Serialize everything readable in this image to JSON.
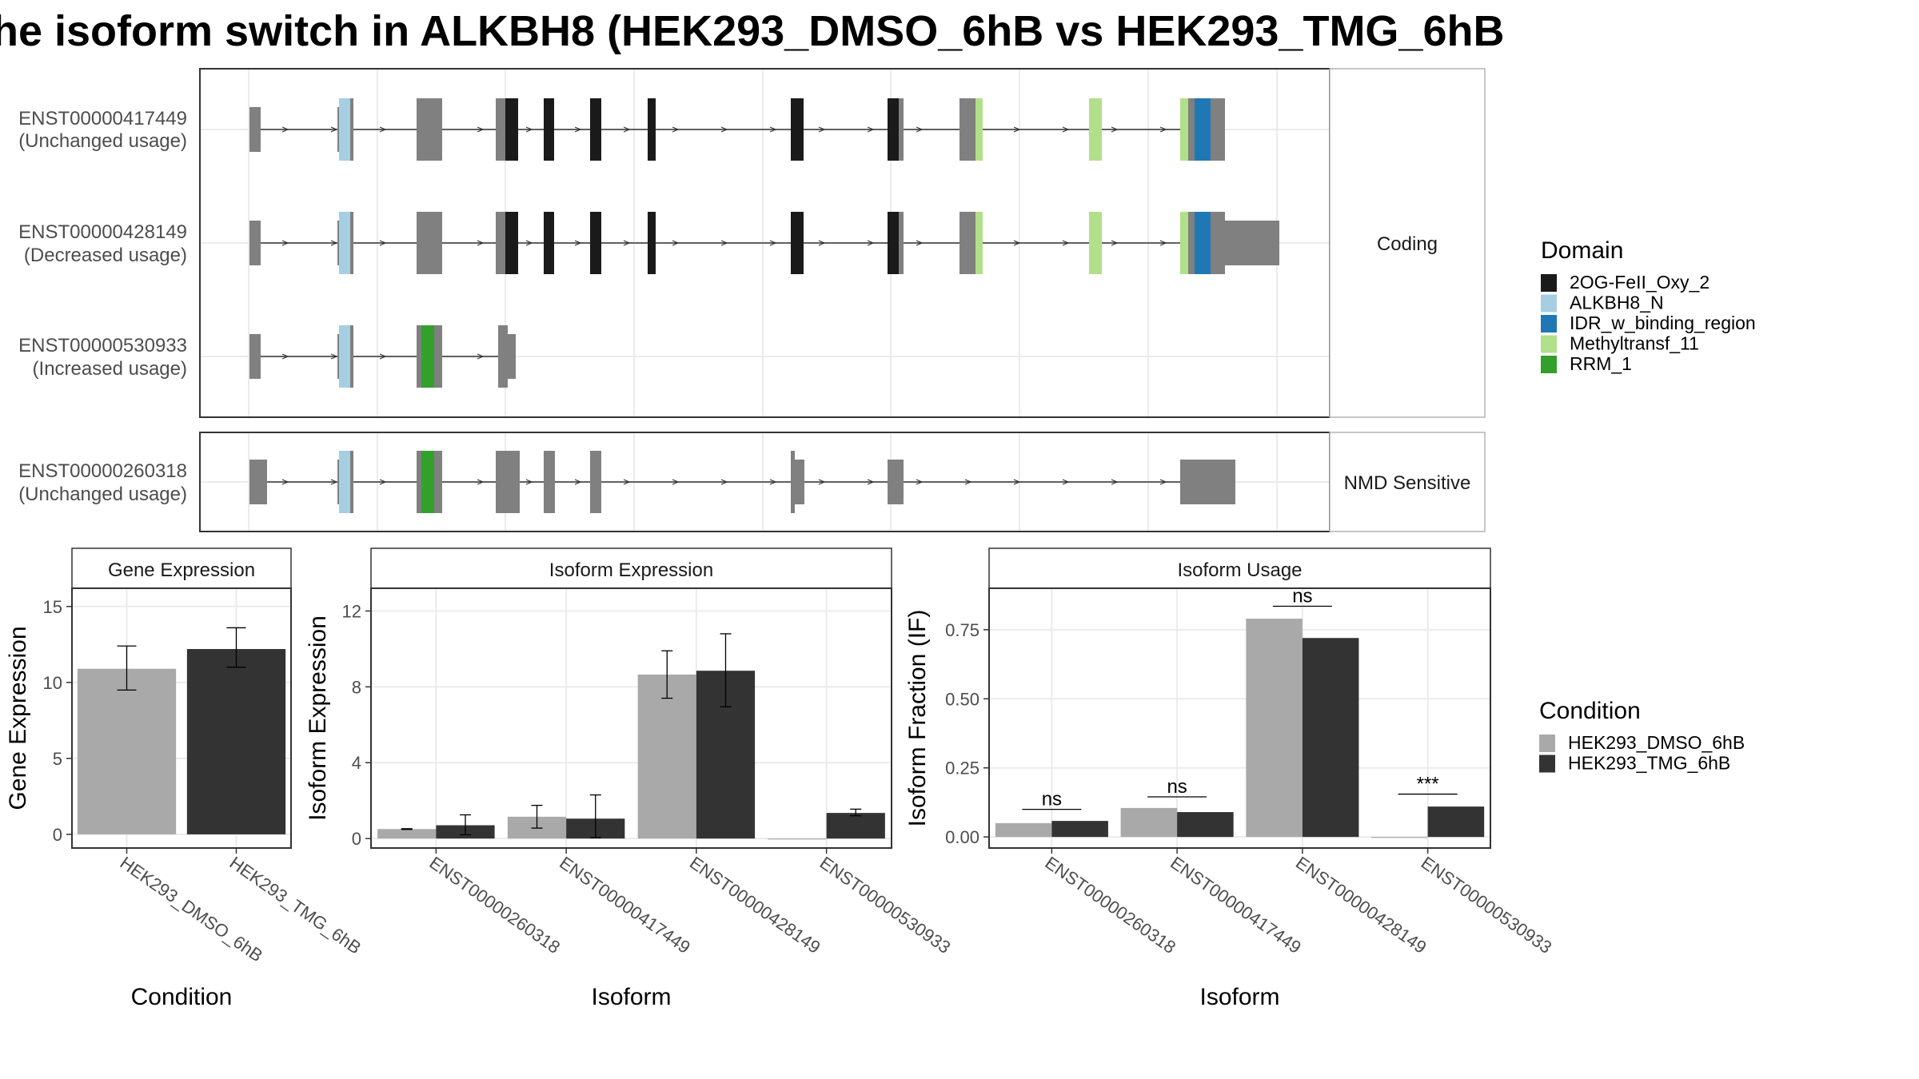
{
  "title": "he isoform switch in ALKBH8 (HEK293_DMSO_6hB vs HEK293_TMG_6hB",
  "colors": {
    "exon": "#808080",
    "dmso": "#a9a9a9",
    "tmg": "#333333",
    "panel_border": "#333333",
    "grid": "#ebebeb",
    "strip_bg": "#ffffff"
  },
  "structure": {
    "facets": [
      "Coding",
      "NMD Sensitive"
    ],
    "transcripts": [
      {
        "id": "ENST00000417449",
        "usage": "(Unchanged usage)",
        "facet": "Coding"
      },
      {
        "id": "ENST00000428149",
        "usage": "(Decreased usage)",
        "facet": "Coding"
      },
      {
        "id": "ENST00000530933",
        "usage": "(Increased usage)",
        "facet": "Coding"
      },
      {
        "id": "ENST00000260318",
        "usage": "(Unchanged usage)",
        "facet": "NMD Sensitive"
      }
    ]
  },
  "domain_legend": {
    "title": "Domain",
    "items": [
      {
        "label": "2OG-FeII_Oxy_2",
        "color": "#1a1a1a"
      },
      {
        "label": "ALKBH8_N",
        "color": "#a6cee3"
      },
      {
        "label": "IDR_w_binding_region",
        "color": "#1f78b4"
      },
      {
        "label": "Methyltransf_11",
        "color": "#b2df8a"
      },
      {
        "label": "RRM_1",
        "color": "#33a02c"
      }
    ]
  },
  "condition_legend": {
    "title": "Condition",
    "items": [
      {
        "label": "HEK293_DMSO_6hB",
        "color": "#a9a9a9"
      },
      {
        "label": "HEK293_TMG_6hB",
        "color": "#333333"
      }
    ]
  },
  "chart_data": [
    {
      "type": "bar",
      "strip": "Gene Expression",
      "xlabel": "Condition",
      "ylabel": "Gene Expression",
      "categories": [
        "HEK293_DMSO_6hB",
        "HEK293_TMG_6hB"
      ],
      "values": [
        10.9,
        12.2
      ],
      "errors": [
        [
          9.5,
          12.4
        ],
        [
          11.0,
          13.6
        ]
      ],
      "colors": [
        "#a9a9a9",
        "#333333"
      ],
      "yticks": [
        "0",
        "5",
        "10",
        "15"
      ],
      "ylim": [
        -0.9,
        16.2
      ]
    },
    {
      "type": "bar",
      "strip": "Isoform Expression",
      "xlabel": "Isoform",
      "ylabel": "Isoform Expression",
      "categories": [
        "ENST00000260318",
        "ENST00000417449",
        "ENST00000428149",
        "ENST00000530933"
      ],
      "yticks": [
        "0",
        "4",
        "8",
        "12"
      ],
      "ylim": [
        -0.5,
        13.2
      ],
      "series": [
        {
          "name": "HEK293_DMSO_6hB",
          "values": [
            0.5,
            1.15,
            8.65,
            0.0
          ],
          "errors": [
            [
              0.48,
              0.52
            ],
            [
              0.55,
              1.75
            ],
            [
              7.4,
              9.9
            ],
            [
              0.0,
              0.0
            ]
          ]
        },
        {
          "name": "HEK293_TMG_6hB",
          "values": [
            0.7,
            1.05,
            8.85,
            1.35
          ],
          "errors": [
            [
              0.2,
              1.25
            ],
            [
              0.05,
              2.3
            ],
            [
              6.95,
              10.8
            ],
            [
              1.2,
              1.55
            ]
          ]
        }
      ]
    },
    {
      "type": "bar",
      "strip": "Isoform Usage",
      "xlabel": "Isoform",
      "ylabel": "Isoform Fraction (IF)",
      "categories": [
        "ENST00000260318",
        "ENST00000417449",
        "ENST00000428149",
        "ENST00000530933"
      ],
      "yticks": [
        "0.00",
        "0.25",
        "0.50",
        "0.75"
      ],
      "ylim": [
        -0.04,
        0.9
      ],
      "series": [
        {
          "name": "HEK293_DMSO_6hB",
          "values": [
            0.05,
            0.105,
            0.79,
            0.0
          ]
        },
        {
          "name": "HEK293_TMG_6hB",
          "values": [
            0.058,
            0.09,
            0.72,
            0.11
          ]
        }
      ],
      "significance": [
        {
          "label": "ns",
          "y": 0.1
        },
        {
          "label": "ns",
          "y": 0.145
        },
        {
          "label": "ns",
          "y": 0.835
        },
        {
          "label": "***",
          "y": 0.155
        }
      ]
    }
  ]
}
